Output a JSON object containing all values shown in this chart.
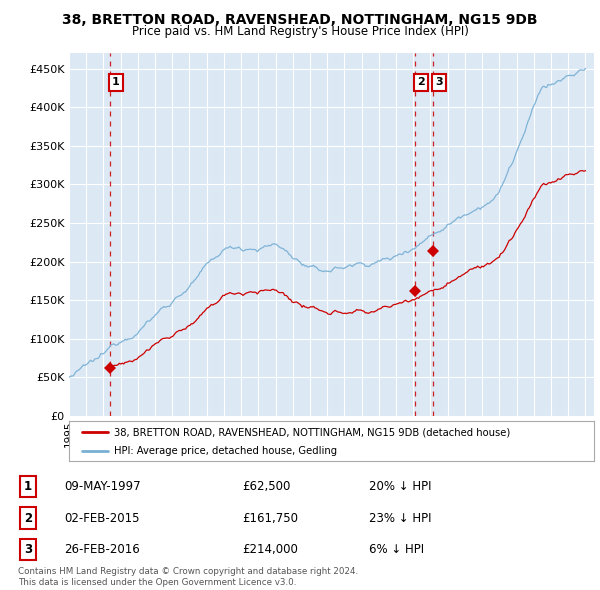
{
  "title1": "38, BRETTON ROAD, RAVENSHEAD, NOTTINGHAM, NG15 9DB",
  "title2": "Price paid vs. HM Land Registry's House Price Index (HPI)",
  "ylabel_ticks": [
    "£0",
    "£50K",
    "£100K",
    "£150K",
    "£200K",
    "£250K",
    "£300K",
    "£350K",
    "£400K",
    "£450K"
  ],
  "ytick_values": [
    0,
    50000,
    100000,
    150000,
    200000,
    250000,
    300000,
    350000,
    400000,
    450000
  ],
  "ylim": [
    0,
    470000
  ],
  "xlim_start": 1995.0,
  "xlim_end": 2025.5,
  "sale_dates": [
    1997.36,
    2015.09,
    2016.16
  ],
  "sale_prices": [
    62500,
    161750,
    214000
  ],
  "sale_labels": [
    "1",
    "2",
    "3"
  ],
  "legend_line1": "38, BRETTON ROAD, RAVENSHEAD, NOTTINGHAM, NG15 9DB (detached house)",
  "legend_line2": "HPI: Average price, detached house, Gedling",
  "table_data": [
    [
      "1",
      "09-MAY-1997",
      "£62,500",
      "20% ↓ HPI"
    ],
    [
      "2",
      "02-FEB-2015",
      "£161,750",
      "23% ↓ HPI"
    ],
    [
      "3",
      "26-FEB-2016",
      "£214,000",
      "6% ↓ HPI"
    ]
  ],
  "footnote1": "Contains HM Land Registry data © Crown copyright and database right 2024.",
  "footnote2": "This data is licensed under the Open Government Licence v3.0.",
  "property_color": "#cc0000",
  "hpi_color": "#7ab0d4",
  "background_color": "#dce9f5",
  "grid_color": "#ffffff",
  "vline_color": "#cc0000",
  "hpi_seed": 12345,
  "prop_seed": 99
}
